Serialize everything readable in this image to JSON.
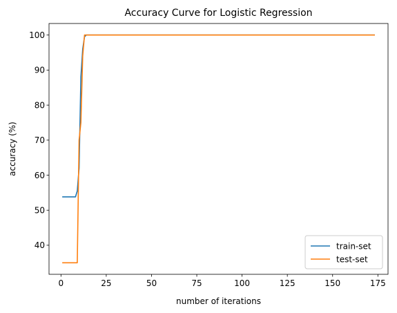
{
  "chart_data": {
    "type": "line",
    "title": "Accuracy Curve for Logistic Regression",
    "xlabel": "number of iterations",
    "ylabel": "accuracy (%)",
    "xlim": [
      -6.6,
      180.6
    ],
    "ylim": [
      31.7,
      103.3
    ],
    "xticks": [
      0,
      25,
      50,
      75,
      100,
      125,
      150,
      175
    ],
    "yticks": [
      40,
      50,
      60,
      70,
      80,
      90,
      100
    ],
    "grid": false,
    "legend_position": "bottom-right",
    "series": [
      {
        "name": "train-set",
        "color": "#1f77b4",
        "x": [
          1,
          2,
          3,
          4,
          5,
          6,
          7,
          8,
          9,
          10,
          11,
          12,
          13,
          14,
          15,
          20,
          50,
          100,
          150,
          173
        ],
        "y": [
          53.8,
          53.8,
          53.8,
          53.8,
          53.8,
          53.8,
          53.8,
          53.8,
          55.5,
          62,
          88,
          96,
          99.5,
          100,
          100,
          100,
          100,
          100,
          100,
          100
        ]
      },
      {
        "name": "test-set",
        "color": "#ff7f0e",
        "x": [
          1,
          2,
          3,
          4,
          5,
          6,
          7,
          8,
          9,
          10,
          11,
          12,
          13,
          14,
          15,
          20,
          50,
          100,
          150,
          173
        ],
        "y": [
          35,
          35,
          35,
          35,
          35,
          35,
          35,
          35,
          35,
          70,
          75,
          94,
          100,
          100,
          100,
          100,
          100,
          100,
          100,
          100
        ]
      }
    ]
  }
}
